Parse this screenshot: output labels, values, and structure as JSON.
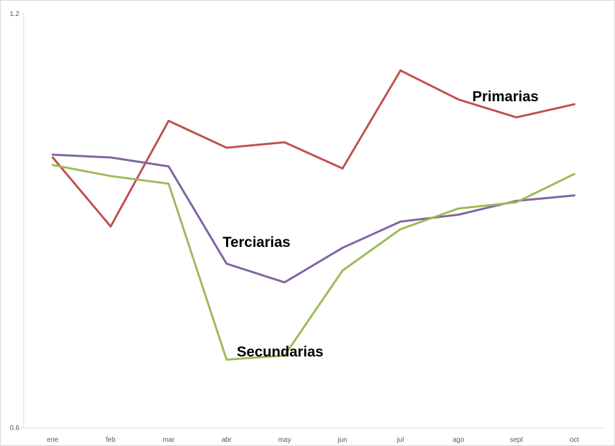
{
  "chart_data": {
    "type": "line",
    "categories": [
      "ene",
      "feb",
      "mar",
      "abr",
      "may",
      "jun",
      "jul",
      "ago",
      "sept",
      "oct"
    ],
    "y_tick_labels": [
      "1.2",
      "0.6"
    ],
    "ylim": [
      0.6,
      1.2
    ],
    "grid": false,
    "legend": "none",
    "series": [
      {
        "name": "Primarias",
        "color": "#c0504d",
        "values": [
          0.992,
          0.892,
          1.045,
          1.006,
          1.014,
          0.976,
          1.118,
          1.076,
          1.05,
          1.069
        ]
      },
      {
        "name": "Terciarias",
        "color": "#8064a2",
        "values": [
          0.996,
          0.992,
          0.979,
          0.838,
          0.811,
          0.861,
          0.899,
          0.909,
          0.929,
          0.937
        ]
      },
      {
        "name": "Secundarias",
        "color": "#9bbb59",
        "values": [
          0.981,
          0.965,
          0.954,
          0.699,
          0.705,
          0.828,
          0.888,
          0.918,
          0.927,
          0.968
        ]
      }
    ]
  }
}
